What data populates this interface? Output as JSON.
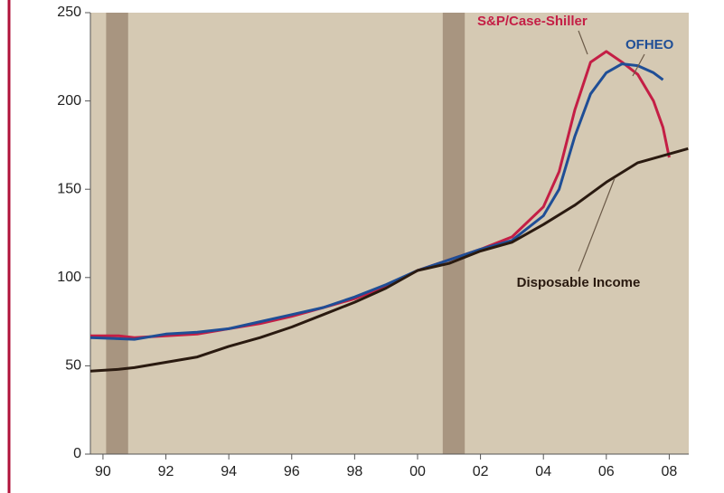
{
  "chart_data": {
    "type": "line",
    "xlim": [
      1989.6,
      2008.62
    ],
    "ylim": [
      0,
      250
    ],
    "yticks": [
      0,
      50,
      100,
      150,
      200,
      250
    ],
    "xticks": [
      {
        "value": 1990,
        "label": "90"
      },
      {
        "value": 1992,
        "label": "92"
      },
      {
        "value": 1994,
        "label": "94"
      },
      {
        "value": 1996,
        "label": "96"
      },
      {
        "value": 1998,
        "label": "98"
      },
      {
        "value": 2000,
        "label": "00"
      },
      {
        "value": 2002,
        "label": "02"
      },
      {
        "value": 2004,
        "label": "04"
      },
      {
        "value": 2006,
        "label": "06"
      },
      {
        "value": 2008,
        "label": "08"
      }
    ],
    "shaded_periods": [
      [
        1990.1,
        1990.8
      ],
      [
        2000.8,
        2001.5
      ]
    ],
    "series": [
      {
        "name": "S&P/Case-Shiller",
        "color": "#c41e45",
        "x": [
          1989.6,
          1990.5,
          1991,
          1992,
          1993,
          1994,
          1995,
          1996,
          1997,
          1998,
          1999,
          2000,
          2001,
          2002,
          2003,
          2004,
          2004.5,
          2005,
          2005.5,
          2006,
          2006.5,
          2007,
          2007.5,
          2007.8,
          2008
        ],
        "values": [
          67,
          67,
          66,
          67,
          68,
          71,
          74,
          78,
          83,
          88,
          95,
          104,
          110,
          116,
          123,
          140,
          160,
          195,
          222,
          228,
          222,
          215,
          200,
          185,
          168
        ]
      },
      {
        "name": "OFHEO",
        "color": "#1f4e96",
        "x": [
          1989.6,
          1991,
          1992,
          1993,
          1994,
          1995,
          1996,
          1997,
          1998,
          1999,
          2000,
          2001,
          2002,
          2003,
          2004,
          2004.5,
          2005,
          2005.5,
          2006,
          2006.5,
          2007,
          2007.5,
          2007.8
        ],
        "values": [
          66,
          65,
          68,
          69,
          71,
          75,
          79,
          83,
          89,
          96,
          104,
          110,
          116,
          121,
          135,
          150,
          180,
          204,
          216,
          221,
          220,
          216,
          212
        ]
      },
      {
        "name": "Disposable Income",
        "color": "#2a1a10",
        "x": [
          1989.6,
          1990.5,
          1991,
          1992,
          1993,
          1994,
          1995,
          1996,
          1997,
          1998,
          1999,
          2000,
          2001,
          2002,
          2003,
          2004,
          2005,
          2006,
          2007,
          2008,
          2008.6
        ],
        "values": [
          47,
          48,
          49,
          52,
          55,
          61,
          66,
          72,
          79,
          86,
          94,
          104,
          108,
          115,
          120,
          130,
          141,
          154,
          165,
          170,
          173
        ]
      }
    ]
  }
}
